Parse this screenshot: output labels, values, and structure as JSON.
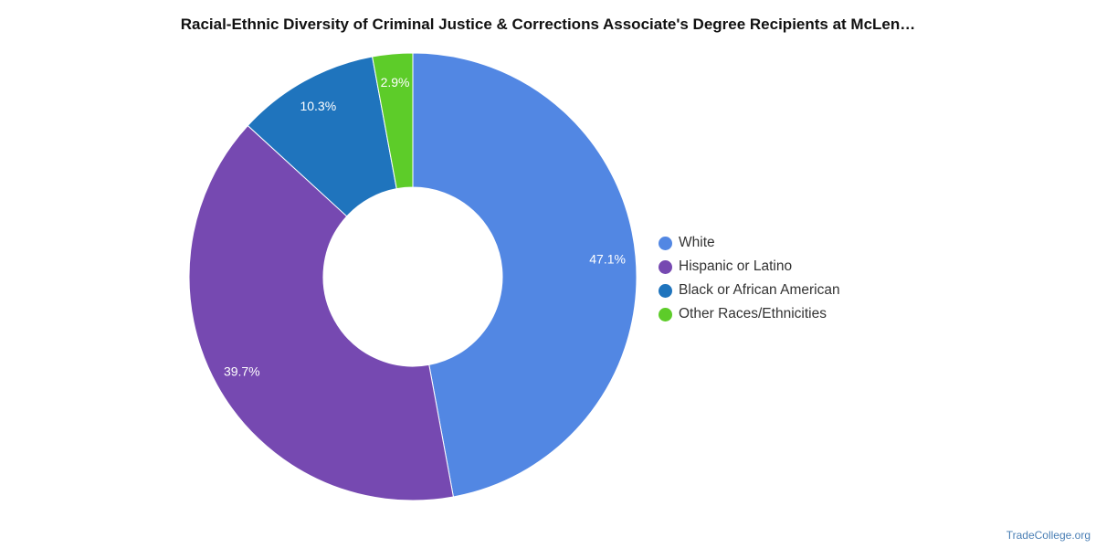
{
  "header": {
    "title": "Racial-Ethnic Diversity of Criminal Justice & Corrections Associate's Degree Recipients at McLen…"
  },
  "footer": {
    "source": "TradeCollege.org"
  },
  "chart_data": {
    "type": "pie",
    "title": "Racial-Ethnic Diversity of Criminal Justice & Corrections Associate's Degree Recipients at McLen…",
    "donut": true,
    "legend_position": "right",
    "categories": [
      "White",
      "Hispanic or Latino",
      "Black or African American",
      "Other Races/Ethnicities"
    ],
    "values": [
      47.1,
      39.7,
      10.3,
      2.9
    ],
    "labels": [
      "47.1%",
      "39.7%",
      "10.3%",
      "2.9%"
    ],
    "colors": [
      "#5287e3",
      "#7649b1",
      "#1f74bd",
      "#5dcc29"
    ]
  }
}
